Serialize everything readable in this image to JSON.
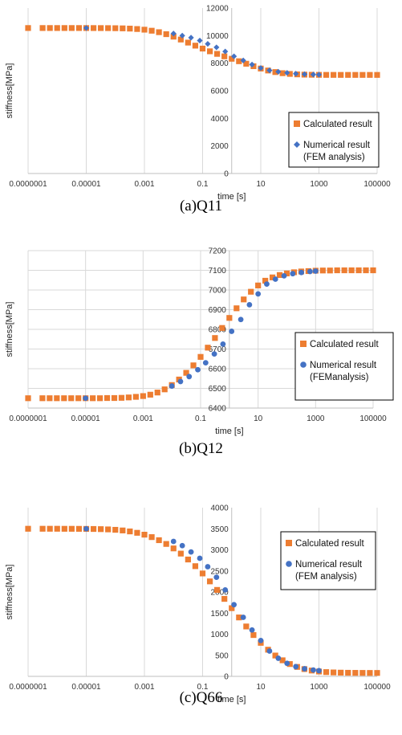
{
  "chart_data": [
    {
      "type": "scatter",
      "caption": "(a)Q11",
      "xlabel": "time [s]",
      "ylabel": "stiffness[MPa]",
      "xscale": "log",
      "xlim": [
        1e-07,
        100000.0
      ],
      "ylim": [
        0,
        12000
      ],
      "xticks": [
        {
          "v": 1e-07,
          "label": "0.0000001"
        },
        {
          "v": 1e-05,
          "label": "0.00001"
        },
        {
          "v": 0.001,
          "label": "0.001"
        },
        {
          "v": 0.1,
          "label": "0.1"
        },
        {
          "v": 10,
          "label": "10"
        },
        {
          "v": 1000,
          "label": "1000"
        },
        {
          "v": 100000,
          "label": "100000"
        }
      ],
      "yticks": [
        {
          "v": 0,
          "label": "0"
        },
        {
          "v": 2000,
          "label": "2000"
        },
        {
          "v": 4000,
          "label": "4000"
        },
        {
          "v": 6000,
          "label": "6000"
        },
        {
          "v": 8000,
          "label": "8000"
        },
        {
          "v": 10000,
          "label": "10000"
        },
        {
          "v": 12000,
          "label": "12000"
        }
      ],
      "grid": "vertical",
      "legend_position": "bottom-right",
      "curve": {
        "low": 7150,
        "high": 10550,
        "center_log10": 0.3,
        "width": 1.05
      },
      "series": [
        {
          "name": "Calculated result",
          "marker": "square",
          "color": "#ED7D31",
          "x": [
            1e-07,
            3.16e-07,
            5.62e-07,
            1e-06,
            1.78e-06,
            3.16e-06,
            5.62e-06,
            1e-05,
            1.78e-05,
            3.16e-05,
            5.62e-05,
            0.0001,
            0.000178,
            0.000316,
            0.000562,
            0.001,
            0.00178,
            0.00316,
            0.00562,
            0.01,
            0.0178,
            0.0316,
            0.0562,
            0.1,
            0.178,
            0.316,
            0.562,
            1,
            1.78,
            3.16,
            5.62,
            10,
            17.8,
            31.6,
            56.2,
            100,
            178,
            316,
            562,
            1000,
            1780,
            3160,
            5620,
            10000,
            17800,
            31600,
            56200,
            100000
          ],
          "y": [
            10550,
            10550,
            10550,
            10550,
            10550,
            10550,
            10550,
            10549,
            10548,
            10546,
            10543,
            10537,
            10526,
            10508,
            10478,
            10430,
            10355,
            10248,
            10105,
            9924,
            9716,
            9493,
            9272,
            9060,
            8862,
            8675,
            8496,
            8320,
            8142,
            7961,
            7782,
            7612,
            7469,
            7356,
            7275,
            7222,
            7189,
            7170,
            7160,
            7155,
            7152,
            7151,
            7150,
            7150,
            7150,
            7150,
            7150,
            7150
          ]
        },
        {
          "name": "Numerical result\n(FEM analysis)",
          "marker": "diamond",
          "color": "#4472C4",
          "x": [
            1e-05,
            0.01,
            0.02,
            0.04,
            0.08,
            0.15,
            0.3,
            0.6,
            1.2,
            2.5,
            5,
            10,
            20,
            40,
            80,
            160,
            320,
            640,
            1000
          ],
          "y": [
            10550,
            10150,
            10000,
            9850,
            9640,
            9400,
            9150,
            8850,
            8500,
            8200,
            7900,
            7650,
            7480,
            7380,
            7300,
            7240,
            7200,
            7180,
            7170
          ]
        }
      ]
    },
    {
      "type": "scatter",
      "caption": "(b)Q12",
      "xlabel": "time [s]",
      "ylabel": "stiffness[MPa]",
      "xscale": "log",
      "xlim": [
        1e-07,
        100000.0
      ],
      "ylim": [
        6400,
        7200
      ],
      "xticks": [
        {
          "v": 1e-07,
          "label": "0.0000001"
        },
        {
          "v": 1e-05,
          "label": "0.00001"
        },
        {
          "v": 0.001,
          "label": "0.001"
        },
        {
          "v": 0.1,
          "label": "0.1"
        },
        {
          "v": 10,
          "label": "10"
        },
        {
          "v": 1000,
          "label": "1000"
        },
        {
          "v": 100000,
          "label": "100000"
        }
      ],
      "yticks": [
        {
          "v": 6400,
          "label": "6400"
        },
        {
          "v": 6500,
          "label": "6500"
        },
        {
          "v": 6600,
          "label": "6600"
        },
        {
          "v": 6700,
          "label": "6700"
        },
        {
          "v": 6800,
          "label": "6800"
        },
        {
          "v": 6900,
          "label": "6900"
        },
        {
          "v": 7000,
          "label": "7000"
        },
        {
          "v": 7100,
          "label": "7100"
        },
        {
          "v": 7200,
          "label": "7200"
        }
      ],
      "grid": "both",
      "legend_position": "bottom-right",
      "curve": {
        "low": 6450,
        "high": 7100,
        "center_log10": 0.45,
        "width": 0.85
      },
      "series": [
        {
          "name": "Calculated result",
          "marker": "square",
          "color": "#ED7D31",
          "x": [
            1e-07,
            3.16e-07,
            5.62e-07,
            1e-06,
            1.78e-06,
            3.16e-06,
            5.62e-06,
            1e-05,
            1.78e-05,
            3.16e-05,
            5.62e-05,
            0.0001,
            0.000178,
            0.000316,
            0.000562,
            0.001,
            0.00178,
            0.00316,
            0.00562,
            0.01,
            0.0178,
            0.0316,
            0.0562,
            0.1,
            0.178,
            0.316,
            0.562,
            1,
            1.78,
            3.16,
            5.62,
            10,
            17.8,
            31.6,
            56.2,
            100,
            178,
            316,
            562,
            1000,
            1780,
            3160,
            5620,
            10000,
            17800,
            31600,
            56200,
            100000
          ],
          "y": [
            6450,
            6450,
            6450,
            6450,
            6450,
            6450,
            6450,
            6450,
            6450,
            6450,
            6451,
            6451,
            6452,
            6454,
            6457,
            6461,
            6468,
            6479,
            6495,
            6517,
            6545,
            6579,
            6617,
            6660,
            6707,
            6756,
            6807,
            6858,
            6907,
            6952,
            6991,
            7023,
            7047,
            7064,
            7076,
            7084,
            7090,
            7094,
            7096,
            7098,
            7099,
            7099,
            7100,
            7100,
            7100,
            7100,
            7100,
            7100
          ]
        },
        {
          "name": "Numerical result\n(FEManalysis)",
          "marker": "circle",
          "color": "#4472C4",
          "x": [
            1e-05,
            0.01,
            0.02,
            0.04,
            0.08,
            0.15,
            0.3,
            0.6,
            1.2,
            2.5,
            5,
            10,
            20,
            40,
            80,
            160,
            320,
            640,
            1000
          ],
          "y": [
            6450,
            6512,
            6535,
            6560,
            6595,
            6630,
            6675,
            6725,
            6790,
            6850,
            6925,
            6980,
            7030,
            7055,
            7072,
            7083,
            7089,
            7094,
            7096
          ]
        }
      ]
    },
    {
      "type": "scatter",
      "caption": "(c)Q66",
      "xlabel": "time [s]",
      "ylabel": "stiffness[MPa]",
      "xscale": "log",
      "xlim": [
        1e-07,
        100000.0
      ],
      "ylim": [
        0,
        4000
      ],
      "xticks": [
        {
          "v": 1e-07,
          "label": "0.0000001"
        },
        {
          "v": 1e-05,
          "label": "0.00001"
        },
        {
          "v": 0.001,
          "label": "0.001"
        },
        {
          "v": 0.1,
          "label": "0.1"
        },
        {
          "v": 10,
          "label": "10"
        },
        {
          "v": 1000,
          "label": "1000"
        },
        {
          "v": 100000,
          "label": "100000"
        }
      ],
      "yticks": [
        {
          "v": 0,
          "label": "0"
        },
        {
          "v": 500,
          "label": "500"
        },
        {
          "v": 1000,
          "label": "1000"
        },
        {
          "v": 1500,
          "label": "1500"
        },
        {
          "v": 2000,
          "label": "2000"
        },
        {
          "v": 2500,
          "label": "2500"
        },
        {
          "v": 3000,
          "label": "3000"
        },
        {
          "v": 3500,
          "label": "3500"
        },
        {
          "v": 4000,
          "label": "4000"
        }
      ],
      "grid": "vertical",
      "legend_position": "right",
      "curve": {
        "low": 80,
        "high": 3500,
        "center_log10": 0.7,
        "width": 1.25
      },
      "series": [
        {
          "name": "Calculated result",
          "marker": "square",
          "color": "#ED7D31",
          "x": [
            1e-07,
            3.16e-07,
            5.62e-07,
            1e-06,
            1.78e-06,
            3.16e-06,
            5.62e-06,
            1e-05,
            1.78e-05,
            3.16e-05,
            5.62e-05,
            0.0001,
            0.000178,
            0.000316,
            0.000562,
            0.001,
            0.00178,
            0.00316,
            0.00562,
            0.01,
            0.0178,
            0.0316,
            0.0562,
            0.1,
            0.178,
            0.316,
            0.562,
            1,
            1.78,
            3.16,
            5.62,
            10,
            17.8,
            31.6,
            56.2,
            100,
            178,
            316,
            562,
            1000,
            1780,
            3160,
            5620,
            10000,
            17800,
            31600,
            56200,
            100000
          ],
          "y": [
            3500,
            3500,
            3500,
            3500,
            3499,
            3499,
            3498,
            3497,
            3495,
            3491,
            3485,
            3475,
            3460,
            3437,
            3404,
            3360,
            3302,
            3229,
            3140,
            3034,
            2911,
            2771,
            2613,
            2440,
            2252,
            2050,
            1837,
            1617,
            1397,
            1183,
            980,
            795,
            632,
            494,
            381,
            292,
            224,
            173,
            138,
            115,
            101,
            93,
            88,
            85,
            83,
            82,
            81,
            81
          ]
        },
        {
          "name": "Numerical result\n(FEM analysis)",
          "marker": "circle",
          "color": "#4472C4",
          "x": [
            1e-05,
            0.01,
            0.02,
            0.04,
            0.08,
            0.15,
            0.3,
            0.6,
            1.2,
            2.5,
            5,
            10,
            20,
            40,
            80,
            160,
            320,
            640,
            1000
          ],
          "y": [
            3500,
            3200,
            3100,
            2950,
            2800,
            2600,
            2350,
            2050,
            1700,
            1400,
            1100,
            850,
            600,
            430,
            310,
            230,
            180,
            150,
            135
          ]
        }
      ]
    }
  ]
}
